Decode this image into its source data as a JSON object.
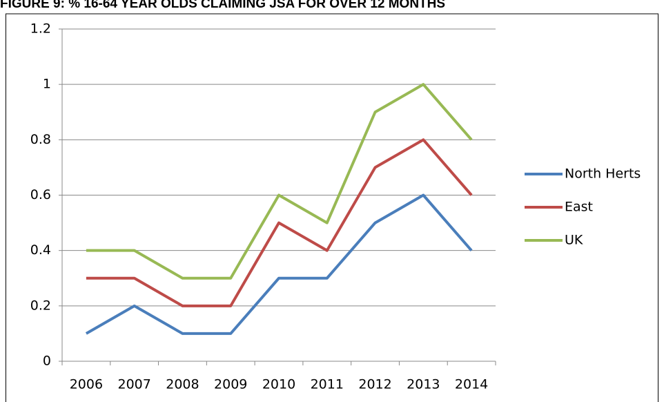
{
  "chart_data": {
    "type": "line",
    "title": "FIGURE 9: % 16-64 YEAR OLDS CLAIMING JSA FOR OVER 12 MONTHS",
    "categories": [
      "2006",
      "2007",
      "2008",
      "2009",
      "2010",
      "2011",
      "2012",
      "2013",
      "2014"
    ],
    "series": [
      {
        "name": "North Herts",
        "color": "#4a7ebb",
        "values": [
          0.1,
          0.2,
          0.1,
          0.1,
          0.3,
          0.3,
          0.5,
          0.6,
          0.4
        ]
      },
      {
        "name": "East",
        "color": "#be4b48",
        "values": [
          0.3,
          0.3,
          0.2,
          0.2,
          0.5,
          0.4,
          0.7,
          0.8,
          0.6
        ]
      },
      {
        "name": "UK",
        "color": "#98b954",
        "values": [
          0.4,
          0.4,
          0.3,
          0.3,
          0.6,
          0.5,
          0.9,
          1.0,
          0.8
        ]
      }
    ],
    "ylim": [
      0,
      1.2
    ],
    "yticks": [
      0,
      0.2,
      0.4,
      0.6,
      0.8,
      1,
      1.2
    ],
    "grid": true,
    "legend": "right"
  }
}
